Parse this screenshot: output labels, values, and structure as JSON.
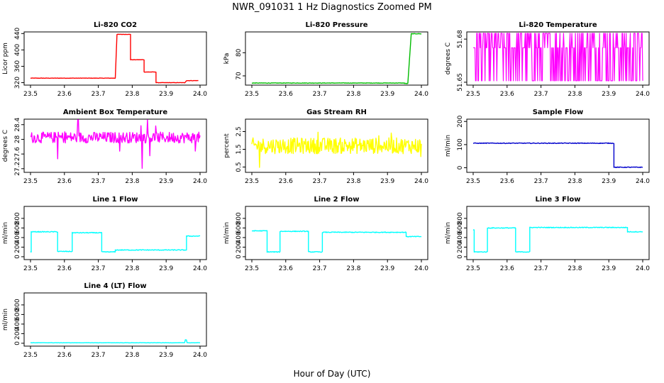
{
  "title": "NWR_091031  1 Hz Diagnostics Zoomed PM",
  "xlabel": "Hour of Day (UTC)",
  "chart_data": [
    {
      "type": "line",
      "title": "Li-820 CO2",
      "ylabel": "Licor ppm",
      "color": "#ff0000",
      "xlim": [
        23.5,
        24.0
      ],
      "ylim": [
        314,
        444
      ],
      "yticks": [
        320,
        360,
        400,
        440
      ],
      "noise": 0.4,
      "x_ticks": [
        "23.5",
        "23.6",
        "23.7",
        "23.8",
        "23.9",
        "24.0"
      ],
      "series": [
        {
          "name": "CO2",
          "segments": [
            [
              23.5,
              23.75,
              331
            ],
            [
              23.755,
              23.795,
              438
            ],
            [
              23.795,
              23.835,
              376
            ],
            [
              23.835,
              23.87,
              346
            ],
            [
              23.87,
              23.955,
              320
            ],
            [
              23.96,
              23.995,
              325
            ]
          ]
        }
      ]
    },
    {
      "type": "line",
      "title": "Li-820 Pressure",
      "ylabel": "kPa",
      "color": "#00bb00",
      "xlim": [
        23.5,
        24.0
      ],
      "ylim": [
        66,
        89
      ],
      "yticks": [
        70,
        80
      ],
      "noise": 0.1,
      "x_ticks": [
        "23.5",
        "23.6",
        "23.7",
        "23.8",
        "23.9",
        "24.0"
      ],
      "series": [
        {
          "name": "Pressure",
          "segments": [
            [
              23.5,
              23.95,
              66.9
            ],
            [
              23.95,
              23.96,
              66.7
            ],
            [
              23.97,
              24.0,
              88.2
            ]
          ]
        }
      ]
    },
    {
      "type": "line",
      "title": "Li-820 Temperature",
      "ylabel": "degrees C",
      "color": "#ff00ff",
      "xlim": [
        23.5,
        24.0
      ],
      "ylim": [
        51.648,
        51.685
      ],
      "yticks": [
        51.65,
        51.68
      ],
      "noise": 0,
      "digital": [
        51.651,
        51.674,
        51.684
      ],
      "x_ticks": [
        "23.5",
        "23.6",
        "23.7",
        "23.8",
        "23.9",
        "24.0"
      ],
      "series": [
        {
          "name": "Temperature",
          "segments": [
            [
              23.5,
              24.0,
              51.674
            ]
          ]
        }
      ]
    },
    {
      "type": "line",
      "title": "Ambient Box Temperature",
      "ylabel": "degrees C",
      "color": "#ff00ff",
      "xlim": [
        23.5,
        24.0
      ],
      "ylim": [
        27.1,
        28.55
      ],
      "yticks": [
        27.2,
        27.6,
        28.0,
        28.4
      ],
      "noise": 0.15,
      "spikes": 0.8,
      "x_ticks": [
        "23.5",
        "23.6",
        "23.7",
        "23.8",
        "23.9",
        "24.0"
      ],
      "series": [
        {
          "name": "Ambient",
          "segments": [
            [
              23.5,
              24.0,
              28.05
            ]
          ]
        }
      ]
    },
    {
      "type": "line",
      "title": "Gas Stream RH",
      "ylabel": "percent",
      "color": "#ffff00",
      "xlim": [
        23.5,
        24.0
      ],
      "ylim": [
        0.2,
        3.2
      ],
      "yticks": [
        0.5,
        1.5,
        2.5
      ],
      "noise": 0.45,
      "spikes": 1.2,
      "x_ticks": [
        "23.5",
        "23.6",
        "23.7",
        "23.8",
        "23.9",
        "24.0"
      ],
      "series": [
        {
          "name": "RH",
          "segments": [
            [
              23.5,
              24.0,
              1.7
            ]
          ]
        }
      ]
    },
    {
      "type": "line",
      "title": "Sample Flow",
      "ylabel": "ml/min",
      "color": "#0000cc",
      "xlim": [
        23.5,
        24.0
      ],
      "ylim": [
        -20,
        210
      ],
      "yticks": [
        0,
        100,
        200
      ],
      "noise": 1.5,
      "x_ticks": [
        "23.5",
        "23.6",
        "23.7",
        "23.8",
        "23.9",
        "24.0"
      ],
      "series": [
        {
          "name": "Sample",
          "segments": [
            [
              23.5,
              23.915,
              106
            ],
            [
              23.915,
              24.0,
              2
            ]
          ]
        }
      ]
    },
    {
      "type": "line",
      "title": "Line 1 Flow",
      "ylabel": "ml/min",
      "color": "#00ffff",
      "xlim": [
        23.5,
        24.0
      ],
      "ylim": [
        -60,
        1050
      ],
      "yticks": [
        0,
        200,
        400,
        600,
        800
      ],
      "noise": 8,
      "x_ticks": [
        "23.5",
        "23.6",
        "23.7",
        "23.8",
        "23.9",
        "24.0"
      ],
      "series": [
        {
          "name": "Line 1",
          "segments": [
            [
              23.5,
              23.502,
              100
            ],
            [
              23.502,
              23.58,
              520
            ],
            [
              23.58,
              23.623,
              110
            ],
            [
              23.623,
              23.71,
              500
            ],
            [
              23.71,
              23.75,
              100
            ],
            [
              23.75,
              23.96,
              140
            ],
            [
              23.96,
              24.0,
              430
            ]
          ]
        }
      ]
    },
    {
      "type": "line",
      "title": "Line 2 Flow",
      "ylabel": "ml/min",
      "color": "#00ffff",
      "xlim": [
        23.5,
        24.0
      ],
      "ylim": [
        -60,
        1050
      ],
      "yticks": [
        0,
        200,
        400,
        600,
        800
      ],
      "noise": 8,
      "x_ticks": [
        "23.5",
        "23.6",
        "23.7",
        "23.8",
        "23.9",
        "24.0"
      ],
      "series": [
        {
          "name": "Line 2",
          "segments": [
            [
              23.5,
              23.545,
              540
            ],
            [
              23.545,
              23.583,
              100
            ],
            [
              23.583,
              23.667,
              530
            ],
            [
              23.667,
              23.708,
              100
            ],
            [
              23.708,
              23.955,
              510
            ],
            [
              23.955,
              24.0,
              420
            ]
          ]
        }
      ]
    },
    {
      "type": "line",
      "title": "Line 3 Flow",
      "ylabel": "ml/min",
      "color": "#00ffff",
      "xlim": [
        23.5,
        24.0
      ],
      "ylim": [
        -60,
        1050
      ],
      "yticks": [
        0,
        200,
        400,
        600,
        800
      ],
      "noise": 8,
      "x_ticks": [
        "23.5",
        "23.6",
        "23.7",
        "23.8",
        "23.9",
        "24.0"
      ],
      "series": [
        {
          "name": "Line 3",
          "segments": [
            [
              23.5,
              23.503,
              560
            ],
            [
              23.503,
              23.542,
              100
            ],
            [
              23.542,
              23.625,
              600
            ],
            [
              23.625,
              23.667,
              100
            ],
            [
              23.667,
              23.955,
              610
            ],
            [
              23.955,
              24.0,
              520
            ]
          ]
        }
      ]
    },
    {
      "type": "line",
      "title": "Line 4 (LT) Flow",
      "ylabel": "ml/min",
      "color": "#00ffff",
      "xlim": [
        23.5,
        24.0
      ],
      "ylim": [
        -60,
        1050
      ],
      "yticks": [
        0,
        200,
        400,
        600,
        800
      ],
      "noise": 2,
      "bump": [
        23.958,
        60
      ],
      "x_ticks": [
        "23.5",
        "23.6",
        "23.7",
        "23.8",
        "23.9",
        "24.0"
      ],
      "series": [
        {
          "name": "Line 4",
          "segments": [
            [
              23.5,
              24.0,
              10
            ]
          ]
        }
      ]
    }
  ]
}
